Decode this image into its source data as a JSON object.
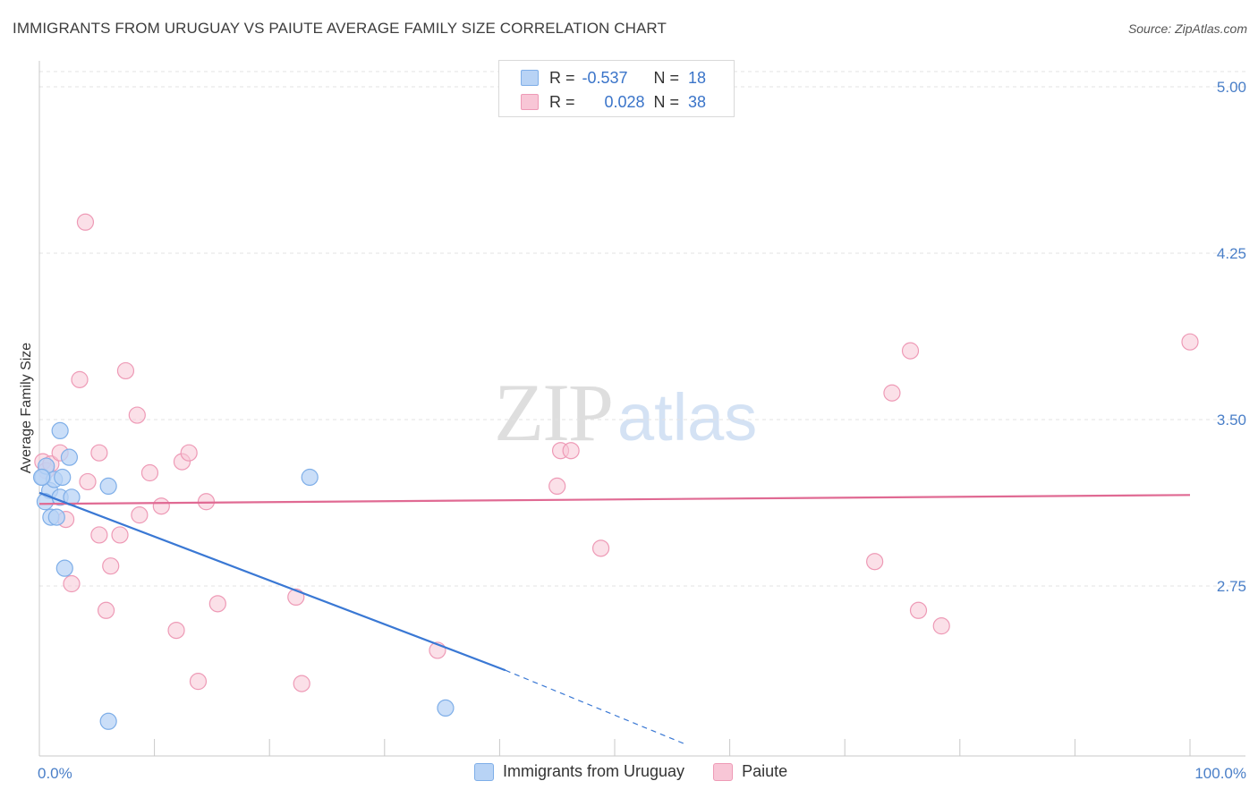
{
  "title": "IMMIGRANTS FROM URUGUAY VS PAIUTE AVERAGE FAMILY SIZE CORRELATION CHART",
  "source": "Source: ZipAtlas.com",
  "watermark": {
    "zip": "ZIP",
    "atlas": "atlas"
  },
  "legend_top": {
    "rows": [
      {
        "r_label": "R =",
        "r_value": "-0.537",
        "n_label": "N =",
        "n_value": "18"
      },
      {
        "r_label": "R =",
        "r_value": "0.028",
        "n_label": "N =",
        "n_value": "38"
      }
    ]
  },
  "colors": {
    "blue_fill": "#b8d3f5",
    "blue_stroke": "#7eaee8",
    "blue_line": "#3a78d4",
    "pink_fill": "#f8c6d6",
    "pink_stroke": "#ee9ab6",
    "pink_line": "#e06a93",
    "grid": "#e3e3e3",
    "axis": "#c8c8c8",
    "tick_label": "#4a7fc8"
  },
  "chart_data": {
    "type": "scatter",
    "title": "IMMIGRANTS FROM URUGUAY VS PAIUTE AVERAGE FAMILY SIZE CORRELATION CHART",
    "xlabel": "",
    "ylabel": "Average Family Size",
    "xlim": [
      0,
      100
    ],
    "ylim": [
      2.0,
      5.1
    ],
    "x_tick_labels": [
      "0.0%",
      "100.0%"
    ],
    "y_ticks": [
      2.75,
      3.5,
      4.25,
      5.0
    ],
    "y_tick_labels": [
      "2.75",
      "3.50",
      "4.25",
      "5.00"
    ],
    "grid": true,
    "legend_position": "top-center",
    "series": [
      {
        "name": "Immigrants from Uruguay",
        "color": "#b8d3f5",
        "points": [
          [
            0.3,
            3.24
          ],
          [
            0.6,
            3.29
          ],
          [
            0.9,
            3.18
          ],
          [
            0.5,
            3.13
          ],
          [
            1.0,
            3.06
          ],
          [
            1.3,
            3.23
          ],
          [
            1.5,
            3.06
          ],
          [
            1.8,
            3.15
          ],
          [
            1.8,
            3.45
          ],
          [
            2.0,
            3.24
          ],
          [
            2.2,
            2.83
          ],
          [
            2.6,
            3.33
          ],
          [
            2.8,
            3.15
          ],
          [
            6.0,
            3.2
          ],
          [
            6.0,
            2.14
          ],
          [
            23.5,
            3.24
          ],
          [
            35.3,
            2.2
          ],
          [
            0.2,
            3.24
          ]
        ],
        "trend": {
          "x0": 0,
          "y0": 3.17,
          "x1_solid": 40.5,
          "y1_solid": 2.37,
          "x1_dash": 56.0,
          "y1_dash": 2.04
        }
      },
      {
        "name": "Paiute",
        "color": "#f8c6d6",
        "points": [
          [
            0.3,
            3.31
          ],
          [
            0.6,
            3.27
          ],
          [
            1.0,
            3.3
          ],
          [
            1.8,
            3.35
          ],
          [
            2.3,
            3.05
          ],
          [
            2.8,
            2.76
          ],
          [
            3.5,
            3.68
          ],
          [
            4.0,
            4.39
          ],
          [
            4.2,
            3.22
          ],
          [
            5.2,
            2.98
          ],
          [
            5.2,
            3.35
          ],
          [
            5.8,
            2.64
          ],
          [
            6.2,
            2.84
          ],
          [
            7.0,
            2.98
          ],
          [
            7.5,
            3.72
          ],
          [
            8.5,
            3.52
          ],
          [
            8.7,
            3.07
          ],
          [
            9.6,
            3.26
          ],
          [
            10.6,
            3.11
          ],
          [
            11.9,
            2.55
          ],
          [
            12.4,
            3.31
          ],
          [
            13.0,
            3.35
          ],
          [
            13.8,
            2.32
          ],
          [
            14.5,
            3.13
          ],
          [
            15.5,
            2.67
          ],
          [
            22.3,
            2.7
          ],
          [
            22.8,
            2.31
          ],
          [
            34.6,
            2.46
          ],
          [
            45.0,
            3.2
          ],
          [
            45.3,
            3.36
          ],
          [
            46.2,
            3.36
          ],
          [
            48.8,
            2.92
          ],
          [
            72.6,
            2.86
          ],
          [
            74.1,
            3.62
          ],
          [
            75.7,
            3.81
          ],
          [
            76.4,
            2.64
          ],
          [
            78.4,
            2.57
          ],
          [
            100.0,
            3.85
          ]
        ],
        "trend": {
          "x0": 0,
          "y0": 3.12,
          "x1": 100,
          "y1": 3.16
        }
      }
    ]
  }
}
